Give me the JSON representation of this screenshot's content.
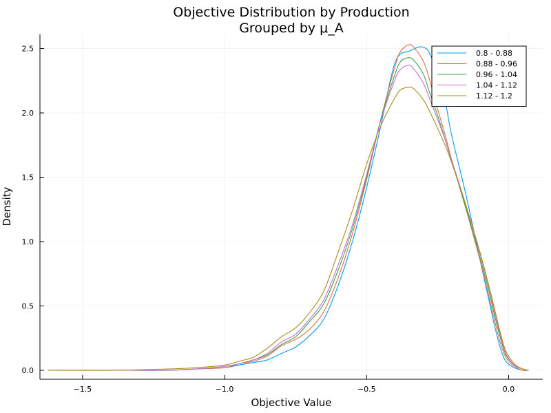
{
  "chart_data": {
    "type": "line",
    "title": [
      "Objective Distribution by Production",
      "Grouped by μ_A"
    ],
    "xlabel": "Objective Value",
    "ylabel": "Density",
    "xlim": [
      -1.65,
      0.12
    ],
    "ylim": [
      -0.07,
      2.61
    ],
    "xticks": [
      -1.5,
      -1.0,
      -0.5,
      0.0
    ],
    "xtick_labels": [
      "−1.5",
      "−1.0",
      "−0.5",
      "0.0"
    ],
    "yticks": [
      0.0,
      0.5,
      1.0,
      1.5,
      2.0,
      2.5
    ],
    "ytick_labels": [
      "0.0",
      "0.5",
      "1.0",
      "1.5",
      "2.0",
      "2.5"
    ],
    "grid": true,
    "legend": "top-right",
    "series": [
      {
        "name": "0.8 - 0.88",
        "color": "#009AFA",
        "x": [
          -1.62,
          -1.4,
          -1.2,
          -1.1,
          -1.0,
          -0.95,
          -0.9,
          -0.85,
          -0.8,
          -0.78,
          -0.75,
          -0.7,
          -0.65,
          -0.6,
          -0.55,
          -0.5,
          -0.45,
          -0.42,
          -0.4,
          -0.38,
          -0.35,
          -0.32,
          -0.3,
          -0.28,
          -0.25,
          -0.22,
          -0.2,
          -0.15,
          -0.1,
          -0.07,
          -0.05,
          -0.03,
          -0.01,
          0.02,
          0.05,
          0.07
        ],
        "y": [
          0.0,
          0.0,
          0.0,
          0.01,
          0.02,
          0.04,
          0.06,
          0.08,
          0.13,
          0.15,
          0.18,
          0.27,
          0.4,
          0.66,
          1.0,
          1.42,
          1.9,
          2.22,
          2.39,
          2.46,
          2.48,
          2.51,
          2.51,
          2.47,
          2.3,
          2.05,
          1.82,
          1.36,
          0.85,
          0.55,
          0.35,
          0.18,
          0.07,
          0.02,
          0.0,
          0.0
        ]
      },
      {
        "name": "0.88 - 0.96",
        "color": "#E26F46",
        "x": [
          -1.62,
          -1.4,
          -1.2,
          -1.1,
          -1.0,
          -0.95,
          -0.9,
          -0.85,
          -0.8,
          -0.75,
          -0.7,
          -0.65,
          -0.6,
          -0.55,
          -0.5,
          -0.45,
          -0.4,
          -0.38,
          -0.35,
          -0.33,
          -0.3,
          -0.28,
          -0.25,
          -0.22,
          -0.2,
          -0.15,
          -0.1,
          -0.07,
          -0.05,
          -0.03,
          -0.01,
          0.02,
          0.05,
          0.07
        ],
        "y": [
          0.0,
          0.0,
          0.0,
          0.01,
          0.02,
          0.05,
          0.07,
          0.11,
          0.19,
          0.24,
          0.32,
          0.46,
          0.72,
          1.06,
          1.48,
          1.95,
          2.36,
          2.48,
          2.53,
          2.5,
          2.4,
          2.27,
          2.03,
          1.8,
          1.63,
          1.25,
          0.85,
          0.58,
          0.39,
          0.22,
          0.1,
          0.03,
          0.0,
          0.0
        ]
      },
      {
        "name": "0.96 - 1.04",
        "color": "#3DA44D",
        "x": [
          -1.62,
          -1.4,
          -1.2,
          -1.1,
          -1.0,
          -0.95,
          -0.9,
          -0.85,
          -0.8,
          -0.75,
          -0.7,
          -0.65,
          -0.6,
          -0.55,
          -0.5,
          -0.45,
          -0.4,
          -0.38,
          -0.35,
          -0.33,
          -0.3,
          -0.28,
          -0.25,
          -0.22,
          -0.2,
          -0.15,
          -0.1,
          -0.07,
          -0.05,
          -0.03,
          -0.01,
          0.02,
          0.05,
          0.07
        ],
        "y": [
          0.0,
          0.0,
          0.0,
          0.01,
          0.03,
          0.05,
          0.08,
          0.12,
          0.2,
          0.26,
          0.38,
          0.52,
          0.78,
          1.1,
          1.5,
          1.95,
          2.3,
          2.4,
          2.43,
          2.4,
          2.3,
          2.17,
          1.98,
          1.77,
          1.62,
          1.26,
          0.87,
          0.62,
          0.43,
          0.26,
          0.12,
          0.04,
          0.01,
          0.0
        ]
      },
      {
        "name": "1.04 - 1.12",
        "color": "#C271D2",
        "x": [
          -1.62,
          -1.4,
          -1.2,
          -1.1,
          -1.0,
          -0.95,
          -0.9,
          -0.85,
          -0.8,
          -0.75,
          -0.7,
          -0.65,
          -0.6,
          -0.55,
          -0.5,
          -0.45,
          -0.4,
          -0.38,
          -0.35,
          -0.33,
          -0.3,
          -0.28,
          -0.25,
          -0.22,
          -0.2,
          -0.15,
          -0.1,
          -0.07,
          -0.05,
          -0.03,
          -0.01,
          0.02,
          0.05,
          0.07
        ],
        "y": [
          0.0,
          0.0,
          0.0,
          0.01,
          0.03,
          0.05,
          0.08,
          0.13,
          0.22,
          0.28,
          0.4,
          0.55,
          0.82,
          1.13,
          1.52,
          1.94,
          2.26,
          2.34,
          2.37,
          2.33,
          2.23,
          2.12,
          1.95,
          1.77,
          1.63,
          1.28,
          0.9,
          0.65,
          0.46,
          0.28,
          0.13,
          0.04,
          0.01,
          0.0
        ]
      },
      {
        "name": "1.12 - 1.2",
        "color": "#AC8D18",
        "x": [
          -1.62,
          -1.4,
          -1.2,
          -1.1,
          -1.0,
          -0.95,
          -0.9,
          -0.85,
          -0.8,
          -0.75,
          -0.7,
          -0.65,
          -0.6,
          -0.55,
          -0.5,
          -0.45,
          -0.4,
          -0.38,
          -0.35,
          -0.33,
          -0.3,
          -0.28,
          -0.25,
          -0.22,
          -0.2,
          -0.15,
          -0.1,
          -0.07,
          -0.05,
          -0.03,
          -0.01,
          0.02,
          0.05,
          0.07
        ],
        "y": [
          0.0,
          0.0,
          0.01,
          0.02,
          0.04,
          0.07,
          0.1,
          0.17,
          0.26,
          0.33,
          0.45,
          0.62,
          0.92,
          1.24,
          1.6,
          1.9,
          2.12,
          2.18,
          2.2,
          2.18,
          2.1,
          2.02,
          1.88,
          1.73,
          1.61,
          1.28,
          0.91,
          0.66,
          0.48,
          0.3,
          0.15,
          0.05,
          0.01,
          0.0
        ]
      }
    ]
  }
}
